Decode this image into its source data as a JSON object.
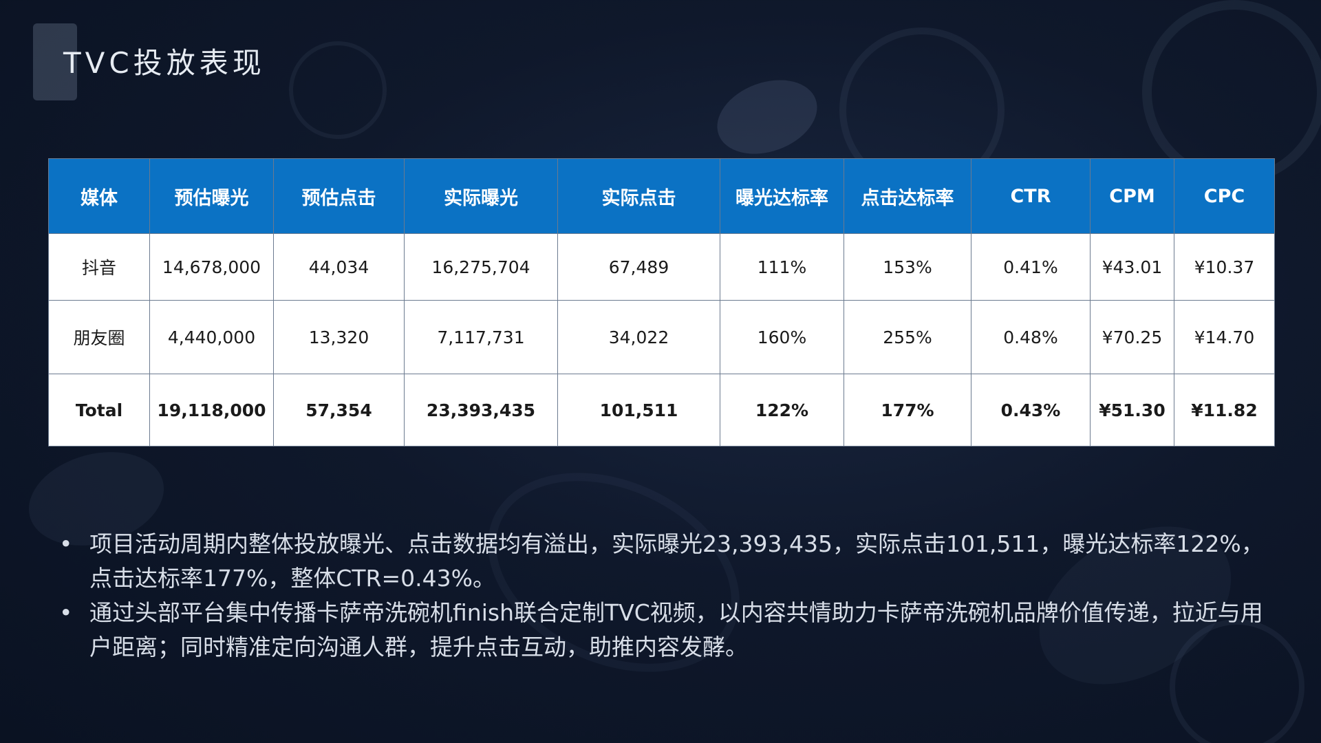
{
  "title": "TVC投放表现",
  "table": {
    "headers": [
      "媒体",
      "预估曝光",
      "预估点击",
      "实际曝光",
      "实际点击",
      "曝光达标率",
      "点击达标率",
      "CTR",
      "CPM",
      "CPC"
    ],
    "rows": [
      [
        "抖音",
        "14,678,000",
        "44,034",
        "16,275,704",
        "67,489",
        "111%",
        "153%",
        "0.41%",
        "¥43.01",
        "¥10.37"
      ],
      [
        "朋友圈",
        "4,440,000",
        "13,320",
        "7,117,731",
        "34,022",
        "160%",
        "255%",
        "0.48%",
        "¥70.25",
        "¥14.70"
      ],
      [
        "Total",
        "19,118,000",
        "57,354",
        "23,393,435",
        "101,511",
        "122%",
        "177%",
        "0.43%",
        "¥51.30",
        "¥11.82"
      ]
    ]
  },
  "bullet_symbol": "•",
  "notes": [
    "项目活动周期内整体投放曝光、点击数据均有溢出，实际曝光23,393,435，实际点击101,511，曝光达标率122%，点击达标率177%，整体CTR=0.43%。",
    "通过头部平台集中传播卡萨帝洗碗机finish联合定制TVC视频，以内容共情助力卡萨帝洗碗机品牌价值传递，拉近与用户距离；同时精准定向沟通人群，提升点击互动，助推内容发酵。"
  ],
  "colors": {
    "header_blue": "#0b72c4",
    "background": "#0f182b",
    "text_light": "#d8dee8"
  }
}
